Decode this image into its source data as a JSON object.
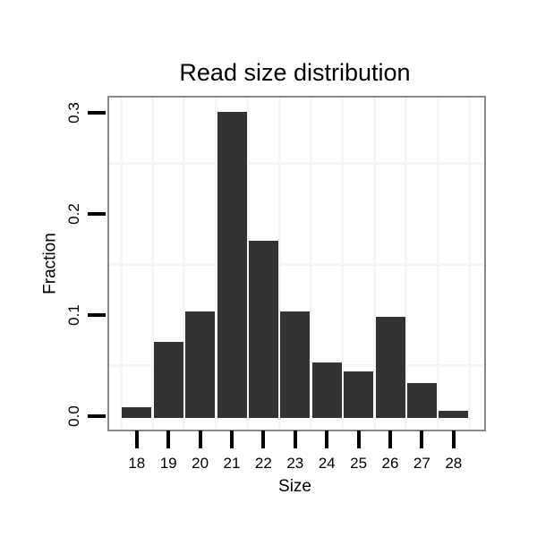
{
  "chart_data": {
    "type": "bar",
    "title": "Read size distribution",
    "xlabel": "Size",
    "ylabel": "Fraction",
    "categories": [
      "18",
      "19",
      "20",
      "21",
      "22",
      "23",
      "24",
      "25",
      "26",
      "27",
      "28"
    ],
    "values": [
      0.009,
      0.073,
      0.103,
      0.3,
      0.173,
      0.103,
      0.053,
      0.044,
      0.098,
      0.033,
      0.005
    ],
    "y_tick_values": [
      0.0,
      0.1,
      0.2,
      0.3
    ],
    "y_tick_labels": [
      "0.0",
      "0.1",
      "0.2",
      "0.3"
    ],
    "y_minor_grid": [
      0.05,
      0.15,
      0.25
    ],
    "ylim": [
      -0.012,
      0.316
    ],
    "grid": "minor gridlines only (vertical at category boundaries, horizontal at 0.05 steps between ticks)",
    "legend": "none",
    "colors": {
      "bar": "#333333",
      "frame": "#898989",
      "grid": "#f5f5f5",
      "tick": "#000000",
      "text": "#000000",
      "background": "#ffffff"
    }
  }
}
